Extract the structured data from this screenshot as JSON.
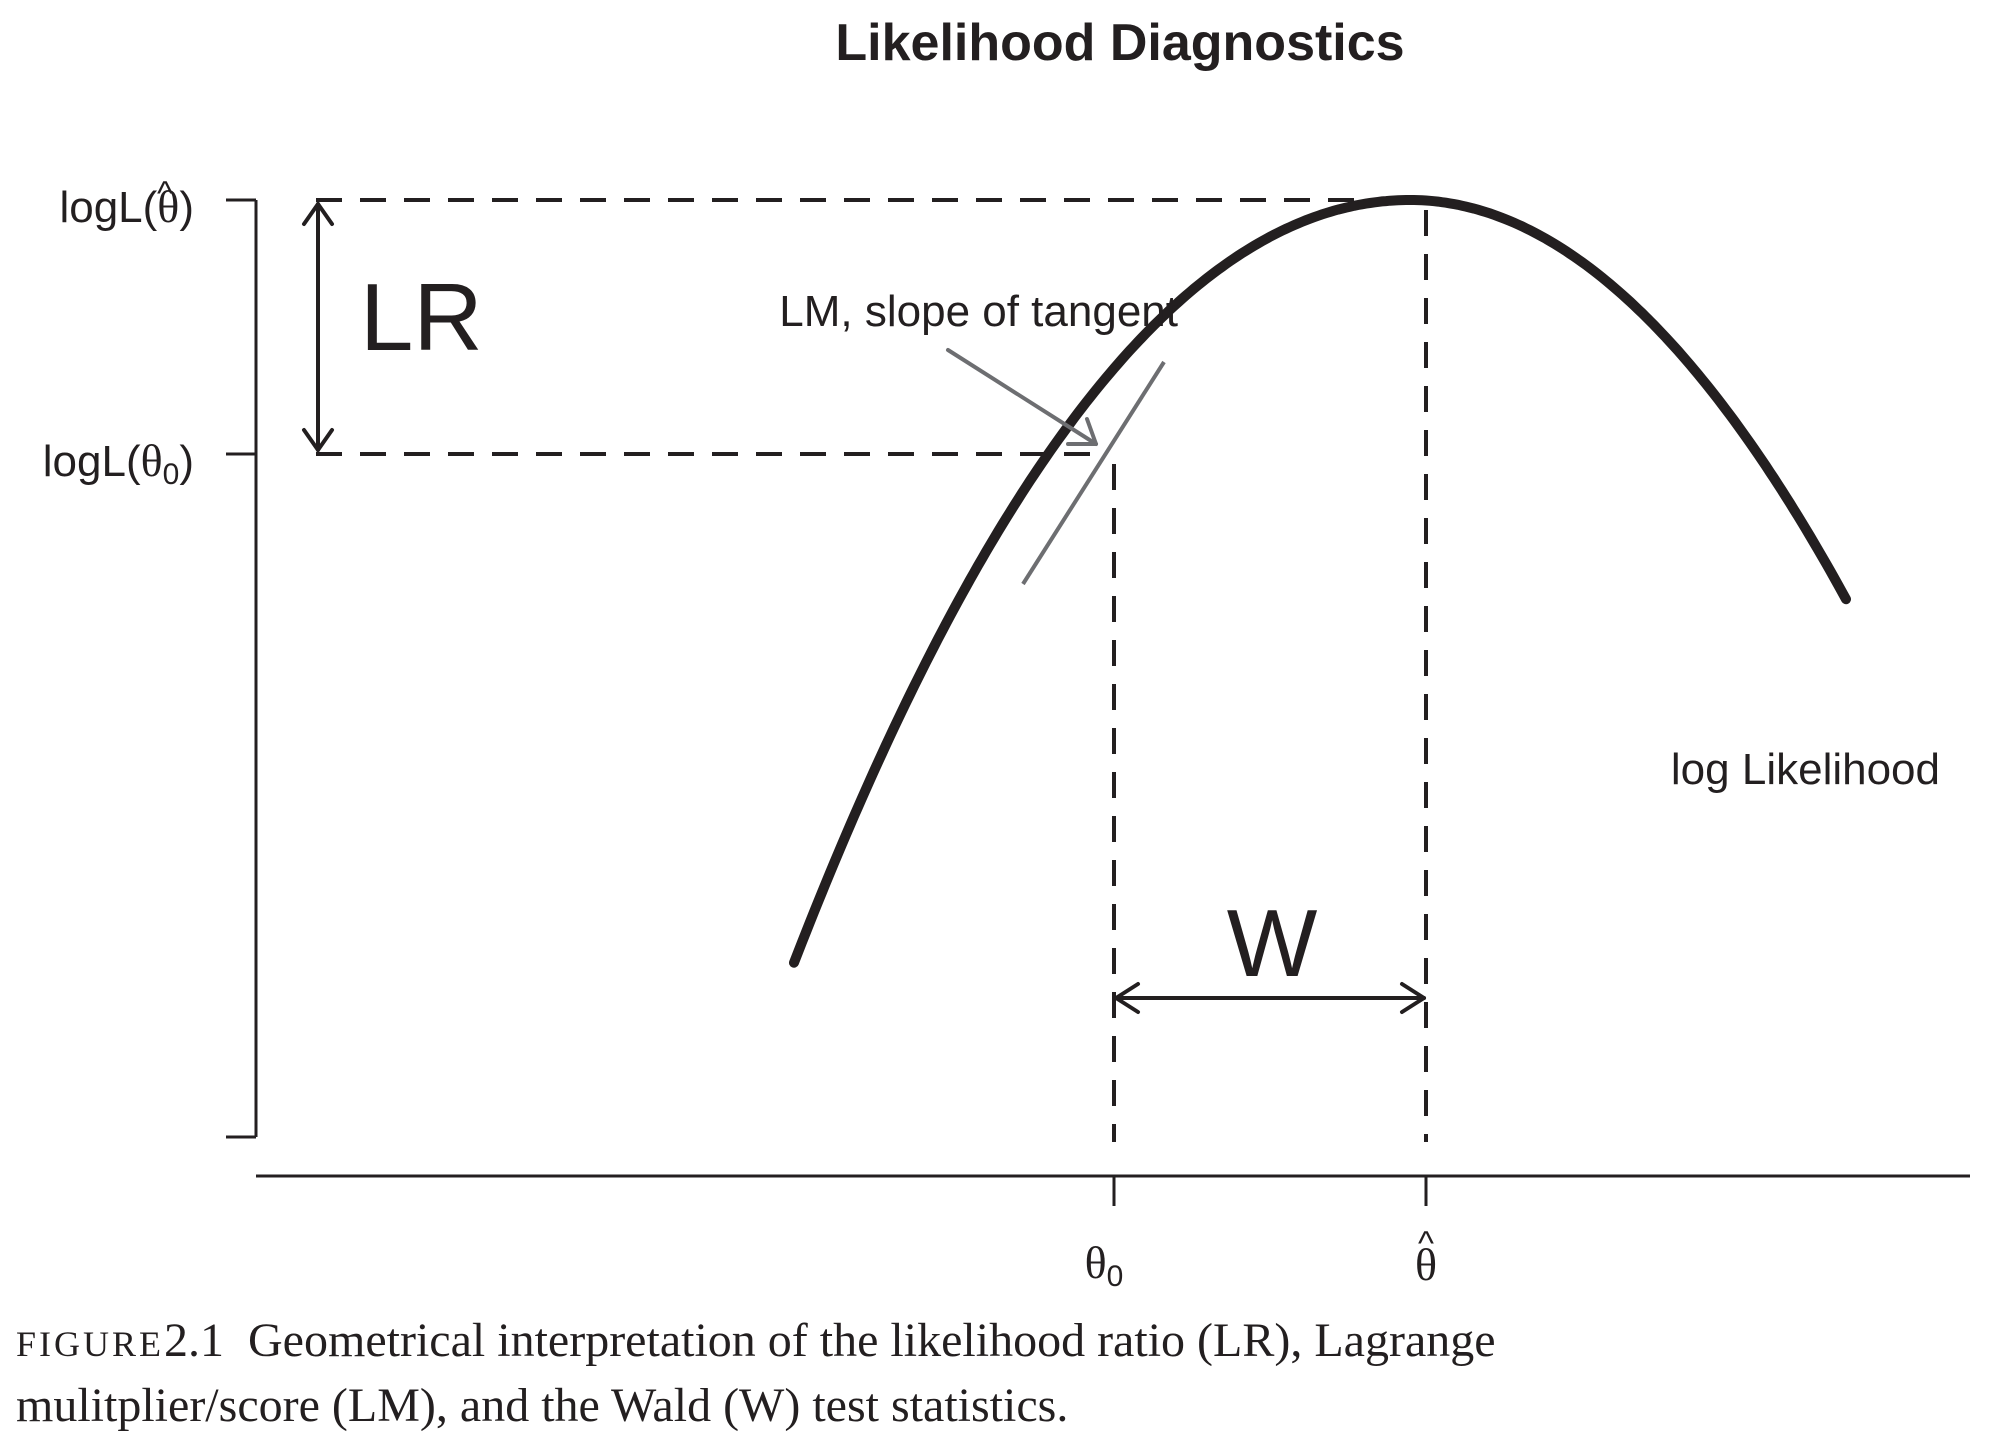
{
  "title": "Likelihood Diagnostics",
  "y_labels": {
    "max": {
      "prefix": "logL(",
      "symbol": "θ",
      "hat": "^",
      "suffix": ")"
    },
    "null": {
      "prefix": "logL(",
      "symbol": "θ",
      "subscript": "0",
      "suffix": ")"
    }
  },
  "x_labels": {
    "null": {
      "symbol": "θ",
      "subscript": "0"
    },
    "max": {
      "symbol": "θ",
      "hat": "^"
    }
  },
  "annotations": {
    "lr": "LR",
    "w": "W",
    "lm": "LM, slope of tangent",
    "curve": "log Likelihood"
  },
  "caption": {
    "label": "FIGURE",
    "number": "2.1",
    "text": "Geometrical interpretation of the likelihood ratio (LR), Lagrange",
    "text2": "mulitplier/score (LM), and the Wald (W) test statistics."
  },
  "colors": {
    "ink": "#231f20",
    "tangent": "#6d6e71"
  }
}
